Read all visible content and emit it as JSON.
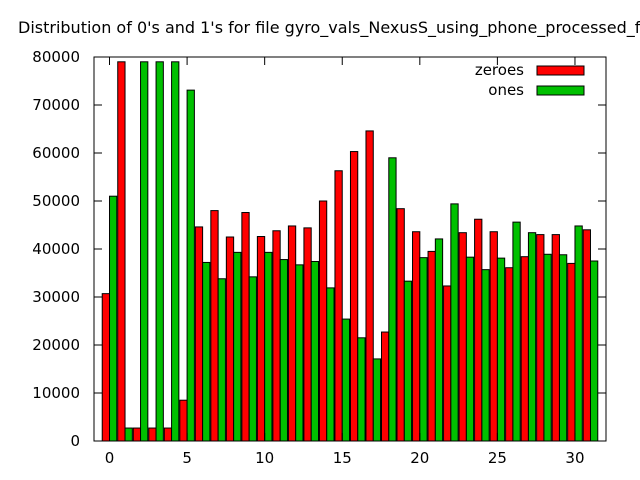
{
  "chart_data": {
    "type": "bar",
    "title": "Distribution of 0's and 1's for file gyro_vals_NexusS_using_phone_processed_f",
    "xlabel": "",
    "ylabel": "",
    "xlim": [
      -1,
      32
    ],
    "ylim": [
      0,
      80000
    ],
    "xticks": [
      0,
      5,
      10,
      15,
      20,
      25,
      30
    ],
    "yticks": [
      0,
      10000,
      20000,
      30000,
      40000,
      50000,
      60000,
      70000,
      80000
    ],
    "grid": false,
    "legend_position": "top-right",
    "x": [
      0,
      1,
      2,
      3,
      4,
      5,
      6,
      7,
      8,
      9,
      10,
      11,
      12,
      13,
      14,
      15,
      16,
      17,
      18,
      19,
      20,
      21,
      22,
      23,
      24,
      25,
      26,
      27,
      28,
      29,
      30,
      31
    ],
    "series": [
      {
        "name": "zeroes",
        "color": "#ff0000",
        "values": [
          30700,
          79000,
          2700,
          2700,
          2700,
          8500,
          44600,
          48000,
          42500,
          47600,
          42600,
          43800,
          44800,
          44400,
          50000,
          56300,
          60300,
          64600,
          22700,
          48400,
          43600,
          39500,
          32300,
          43400,
          46200,
          43600,
          36100,
          38400,
          43000,
          43000,
          37000,
          44000
        ]
      },
      {
        "name": "ones",
        "color": "#00c000",
        "values": [
          51000,
          2700,
          79000,
          79000,
          79000,
          73100,
          37200,
          33800,
          39300,
          34200,
          39300,
          37800,
          36700,
          37400,
          31900,
          25400,
          21500,
          17100,
          59000,
          33300,
          38200,
          42100,
          49400,
          38300,
          35700,
          38100,
          45600,
          43400,
          38900,
          38800,
          44800,
          37500
        ]
      }
    ]
  }
}
